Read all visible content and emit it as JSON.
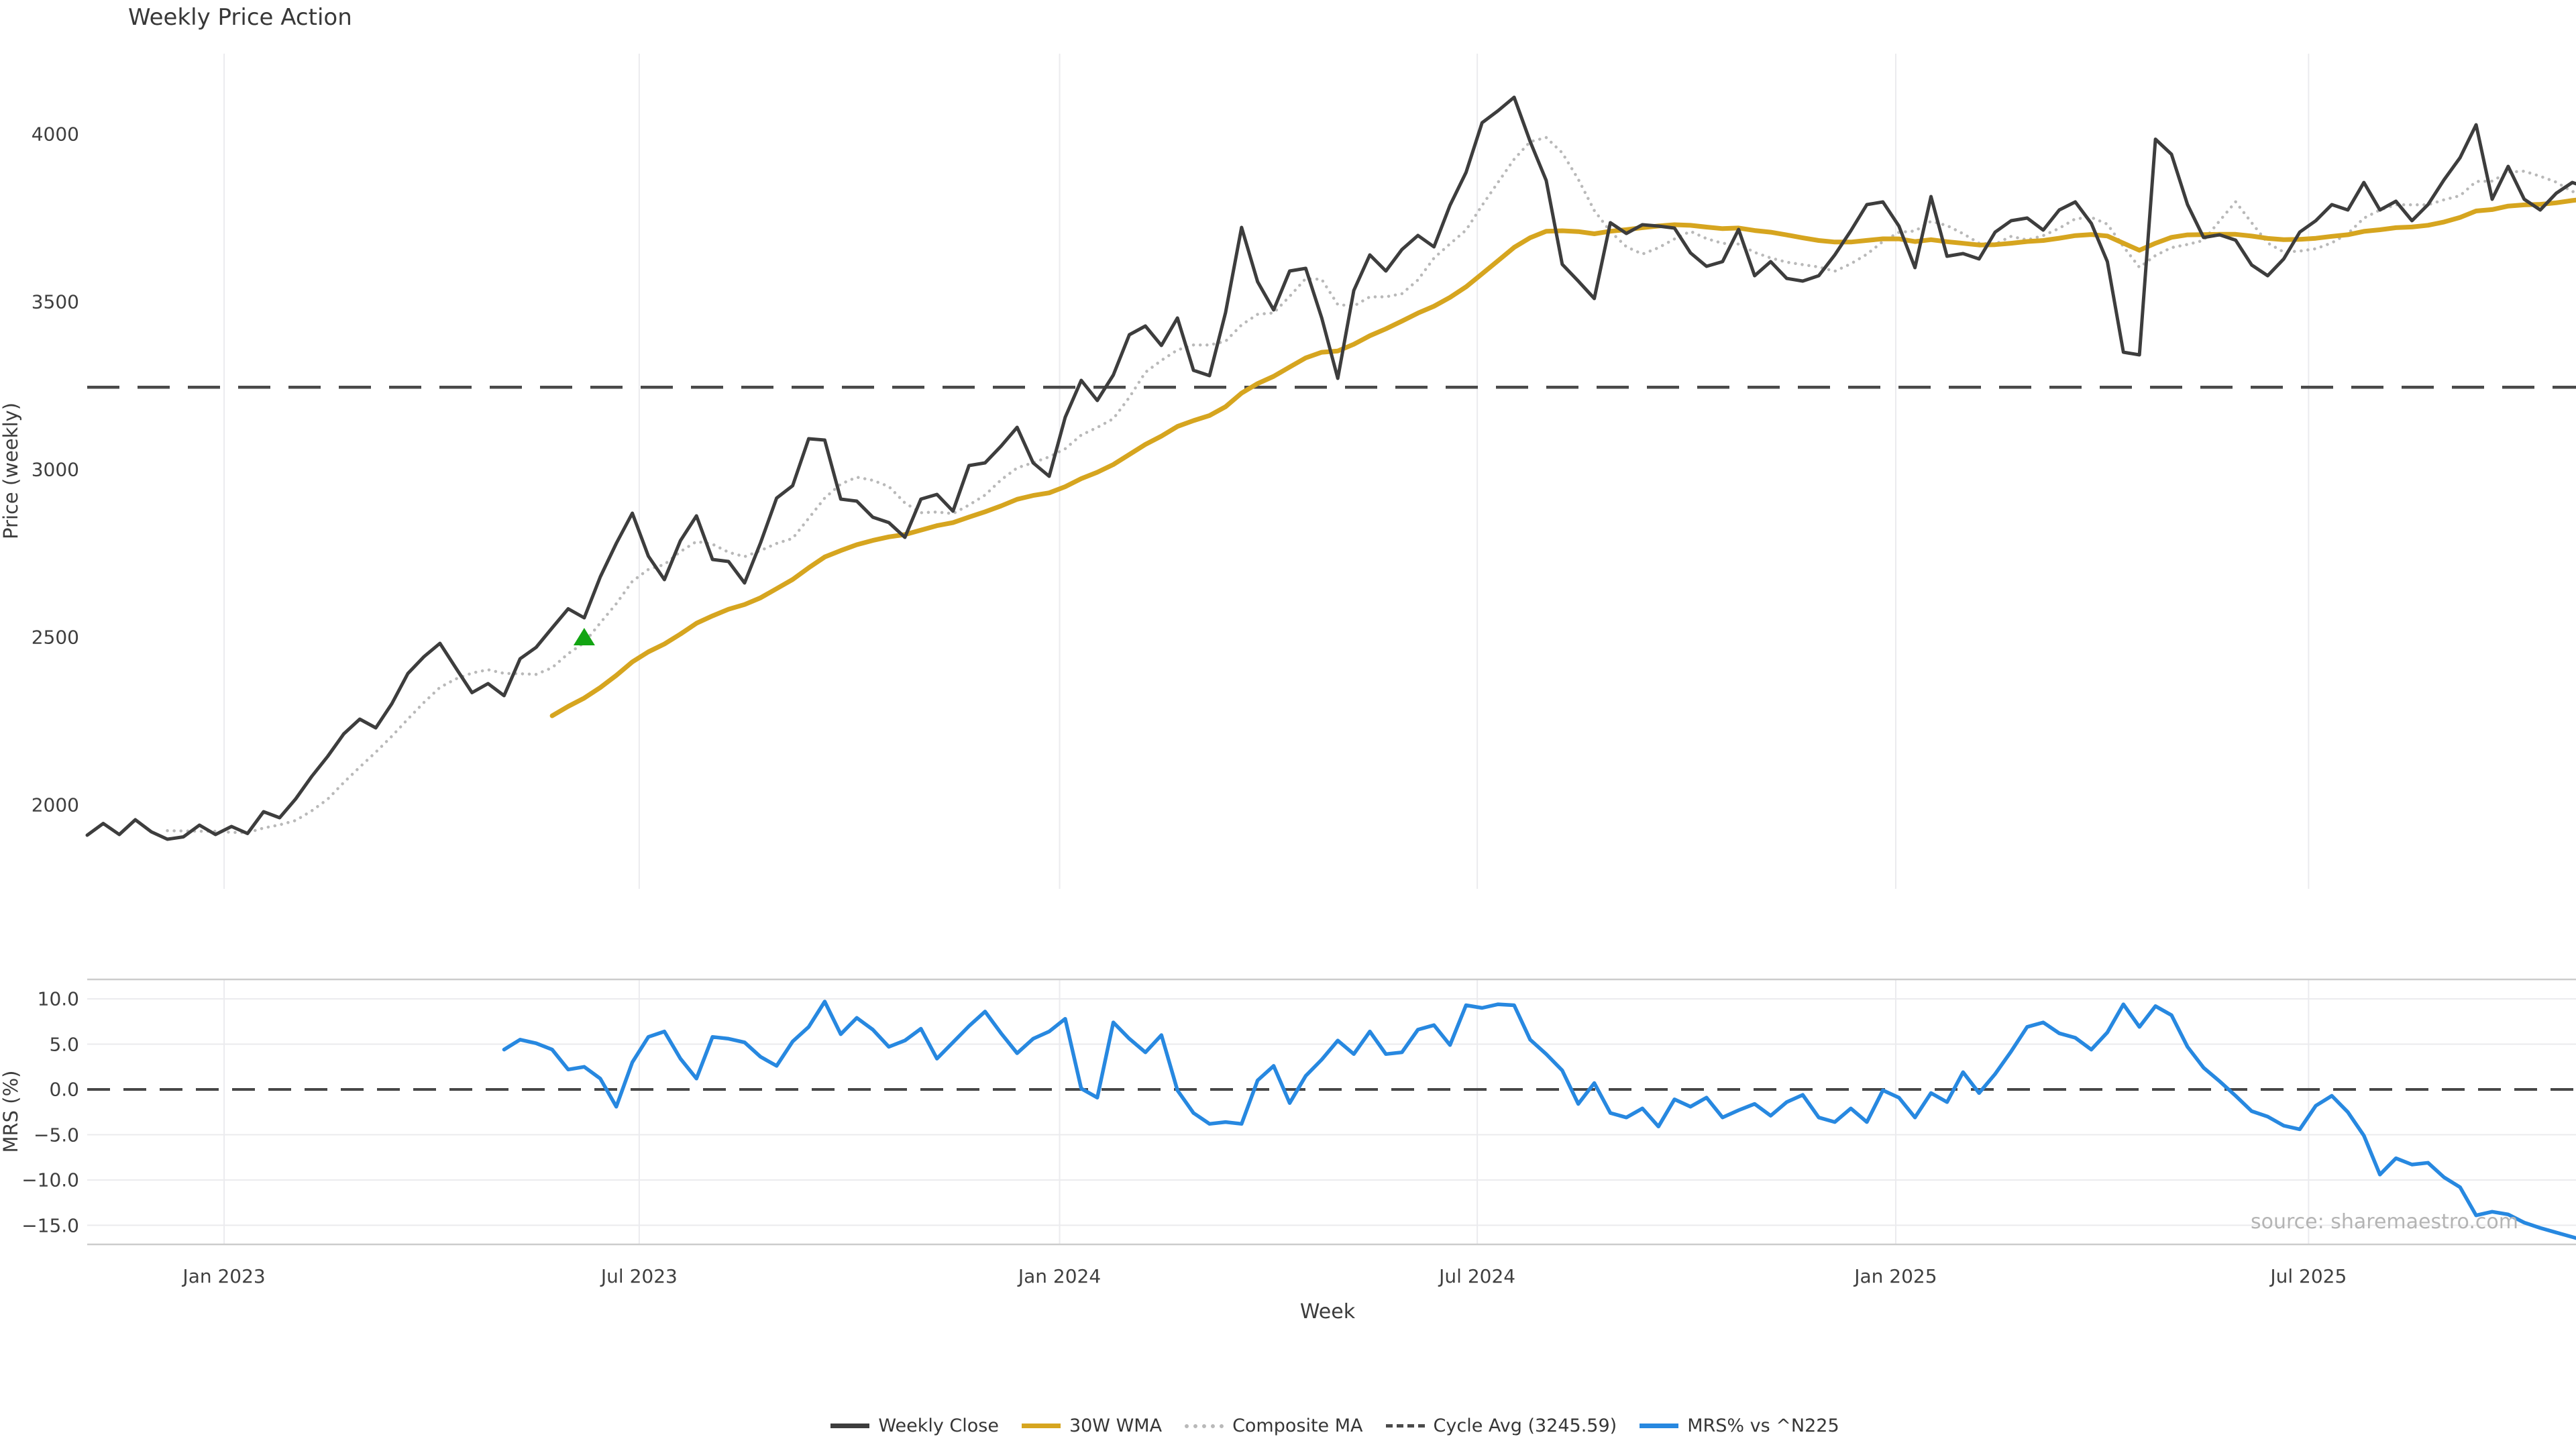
{
  "figure": {
    "title": "Weekly Price Action",
    "watermark": "source: sharemaestro.com"
  },
  "colors": {
    "weekly_close": "#3d3d3d",
    "wma_30w": "#d6a51f",
    "composite_ma": "#b9b9b9",
    "cycle_avg": "#4a4a4a",
    "mrs": "#2788e0",
    "signal_marker": "#12a412",
    "gridline": "#ebebee",
    "spine": "#cccccc"
  },
  "legend": [
    {
      "label": "Weekly Close",
      "color": "#3d3d3d",
      "style": "solid"
    },
    {
      "label": "30W WMA",
      "color": "#d6a51f",
      "style": "solid"
    },
    {
      "label": "Composite MA",
      "color": "#b9b9b9",
      "style": "dotted"
    },
    {
      "label": "Cycle Avg (3245.59)",
      "color": "#4a4a4a",
      "style": "dashed"
    },
    {
      "label": "MRS% vs ^N225",
      "color": "#2788e0",
      "style": "solid"
    }
  ],
  "chart_data": {
    "type": "line",
    "title": "Weekly Price Action",
    "xlabel": "Week",
    "x_unit": "weekly index starting ~Nov 2022",
    "x_ticks": [
      {
        "label": "Jan 2023",
        "index": 8.54
      },
      {
        "label": "Jul 2023",
        "index": 34.43
      },
      {
        "label": "Jan 2024",
        "index": 60.65
      },
      {
        "label": "Jul 2024",
        "index": 86.7
      },
      {
        "label": "Jan 2025",
        "index": 112.8
      },
      {
        "label": "Jul 2025",
        "index": 138.55
      }
    ],
    "panels": [
      {
        "name": "price",
        "ylabel": "Price (weekly)",
        "ylim": [
          1750,
          4240
        ],
        "yticks": [
          {
            "label": "4000",
            "value": 4000
          },
          {
            "label": "3500",
            "value": 3500
          },
          {
            "label": "3000",
            "value": 3000
          },
          {
            "label": "2500",
            "value": 2500
          },
          {
            "label": "2000",
            "value": 2000
          }
        ],
        "grid": "vertical-only",
        "reference_line": {
          "name": "Cycle Avg",
          "value": 3245.59,
          "style": "dashed",
          "color": "#4a4a4a"
        },
        "marker": {
          "name": "signal-triangle",
          "shape": "triangle-up",
          "week_index": 31,
          "value": 2500,
          "color": "#12a412"
        },
        "series": [
          {
            "name": "Weekly Close",
            "color": "#3d3d3d",
            "style": "solid",
            "width": 5,
            "start_index": 0,
            "values": [
              1910,
              1945,
              1912,
              1956,
              1920,
              1898,
              1905,
              1940,
              1912,
              1936,
              1915,
              1980,
              1962,
              2018,
              2085,
              2145,
              2212,
              2256,
              2230,
              2302,
              2392,
              2442,
              2482,
              2408,
              2335,
              2362,
              2326,
              2436,
              2470,
              2528,
              2585,
              2558,
              2680,
              2780,
              2870,
              2742,
              2672,
              2788,
              2862,
              2732,
              2726,
              2662,
              2782,
              2915,
              2952,
              3092,
              3088,
              2912,
              2906,
              2858,
              2842,
              2798,
              2912,
              2926,
              2876,
              3012,
              3020,
              3070,
              3126,
              3020,
              2980,
              3156,
              3266,
              3206,
              3282,
              3402,
              3428,
              3370,
              3452,
              3296,
              3280,
              3468,
              3722,
              3560,
              3476,
              3592,
              3600,
              3452,
              3272,
              3534,
              3640,
              3592,
              3656,
              3698,
              3664,
              3788,
              3886,
              4034,
              4070,
              4110,
              3978,
              3862,
              3612,
              3562,
              3510,
              3736,
              3704,
              3730,
              3726,
              3720,
              3646,
              3606,
              3620,
              3716,
              3578,
              3620,
              3570,
              3562,
              3578,
              3640,
              3712,
              3790,
              3798,
              3726,
              3602,
              3814,
              3636,
              3644,
              3628,
              3708,
              3742,
              3750,
              3714,
              3774,
              3798,
              3734,
              3620,
              3350,
              3342,
              3985,
              3940,
              3790,
              3692,
              3700,
              3684,
              3610,
              3578,
              3628,
              3708,
              3742,
              3790,
              3774,
              3856,
              3774,
              3800,
              3742,
              3790,
              3864,
              3930,
              4028,
              3806,
              3904,
              3806,
              3774,
              3824,
              3856,
              3840
            ]
          },
          {
            "name": "30W WMA",
            "color": "#d6a51f",
            "style": "solid",
            "width": 7,
            "start_index": 29,
            "derived": "30-week linearly-weighted moving average of Weekly Close",
            "window": 30
          },
          {
            "name": "Composite MA",
            "color": "#b9b9b9",
            "style": "dotted",
            "width": 4.5,
            "start_index": 5,
            "derived": "6-week simple moving average of Weekly Close",
            "window": 6
          }
        ]
      },
      {
        "name": "mrs",
        "ylabel": "MRS (%)",
        "ylim": [
          -17.1,
          12.1
        ],
        "yticks": [
          {
            "label": "10.0",
            "value": 10
          },
          {
            "label": "5.0",
            "value": 5
          },
          {
            "label": "0.0",
            "value": 0
          },
          {
            "label": "−5.0",
            "value": -5
          },
          {
            "label": "−10.0",
            "value": -10
          },
          {
            "label": "−15.0",
            "value": -15
          }
        ],
        "grid": "horizontal-and-vertical",
        "zero_line": {
          "value": 0,
          "style": "dashed",
          "color": "#474747"
        },
        "series": [
          {
            "name": "MRS% vs ^N225",
            "color": "#2788e0",
            "style": "solid",
            "width": 5.5,
            "start_index": 26,
            "values": [
              4.4,
              5.5,
              5.1,
              4.4,
              2.2,
              2.5,
              1.2,
              -1.9,
              3.0,
              5.8,
              6.4,
              3.4,
              1.2,
              5.8,
              5.6,
              5.2,
              3.6,
              2.6,
              5.3,
              6.9,
              9.7,
              6.1,
              7.9,
              6.6,
              4.7,
              5.4,
              6.7,
              3.4,
              5.2,
              7.0,
              8.6,
              6.2,
              4.0,
              5.6,
              6.4,
              7.8,
              0.1,
              -0.9,
              7.4,
              5.6,
              4.1,
              6.0,
              -0.1,
              -2.6,
              -3.8,
              -3.6,
              -3.8,
              1.0,
              2.6,
              -1.5,
              1.5,
              3.3,
              5.4,
              3.9,
              6.4,
              3.9,
              4.1,
              6.6,
              7.1,
              4.9,
              9.3,
              9.0,
              9.4,
              9.3,
              5.5,
              3.9,
              2.1,
              -1.6,
              0.7,
              -2.6,
              -3.1,
              -2.1,
              -4.1,
              -1.1,
              -1.9,
              -0.9,
              -3.1,
              -2.3,
              -1.6,
              -2.9,
              -1.4,
              -0.6,
              -3.1,
              -3.6,
              -2.1,
              -3.6,
              -0.1,
              -0.9,
              -3.1,
              -0.4,
              -1.4,
              1.9,
              -0.4,
              1.7,
              4.2,
              6.9,
              7.4,
              6.2,
              5.7,
              4.4,
              6.3,
              9.4,
              6.9,
              9.2,
              8.2,
              4.7,
              2.4,
              0.9,
              -0.7,
              -2.4,
              -3.0,
              -4.0,
              -4.4,
              -1.8,
              -0.7,
              -2.5,
              -5.1,
              -9.4,
              -7.6,
              -8.3,
              -8.1,
              -9.7,
              -10.8,
              -13.9,
              -13.5,
              -13.8,
              -14.7,
              -15.3,
              -15.8,
              -16.3,
              -16.8
            ]
          }
        ]
      }
    ]
  }
}
